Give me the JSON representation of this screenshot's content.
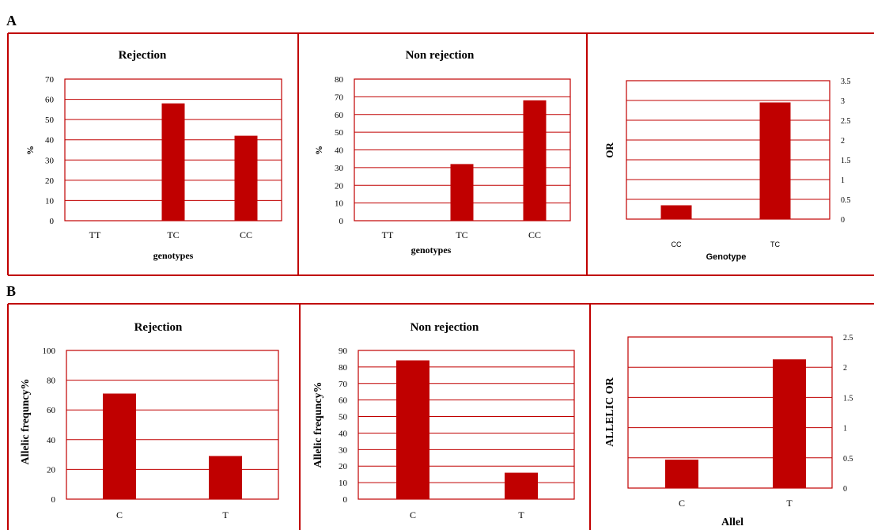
{
  "panels": [
    {
      "letter": "A"
    },
    {
      "letter": "B"
    }
  ],
  "colors": {
    "bar": "#c00000",
    "frame": "#c00000",
    "text": "#000000"
  },
  "chart_data": [
    {
      "type": "bar",
      "panel": "A",
      "title": "Rejection",
      "xlabel": "genotypes",
      "ylabel": "%",
      "categories": [
        "TT",
        "TC",
        "CC"
      ],
      "values": [
        0,
        58,
        42
      ],
      "ylim": [
        0,
        70
      ],
      "yticks": [
        "0",
        "10",
        "20",
        "30",
        "40",
        "50",
        "60",
        "70"
      ],
      "grid": true,
      "y_axis_side": "left"
    },
    {
      "type": "bar",
      "panel": "A",
      "title": "Non rejection",
      "xlabel": "genotypes",
      "ylabel": "%",
      "categories": [
        "TT",
        "TC",
        "CC"
      ],
      "values": [
        0,
        32,
        68
      ],
      "ylim": [
        0,
        80
      ],
      "yticks": [
        "0",
        "10",
        "20",
        "30",
        "40",
        "50",
        "60",
        "70",
        "80"
      ],
      "grid": true,
      "y_axis_side": "left"
    },
    {
      "type": "bar",
      "panel": "A",
      "title": "",
      "xlabel": "Genotype",
      "ylabel": "OR",
      "categories": [
        "CC",
        "TC"
      ],
      "values": [
        0.35,
        2.95
      ],
      "ylim": [
        0,
        3.5
      ],
      "yticks": [
        "0",
        "0.5",
        "1",
        "1.5",
        "2",
        "2.5",
        "3",
        "3.5"
      ],
      "grid": true,
      "y_axis_side": "right"
    },
    {
      "type": "bar",
      "panel": "B",
      "title": "Rejection",
      "xlabel": "",
      "ylabel": "Allelic frequncy%",
      "categories": [
        "C",
        "T"
      ],
      "values": [
        71,
        29
      ],
      "ylim": [
        0,
        100
      ],
      "yticks": [
        "0",
        "20",
        "40",
        "60",
        "80",
        "100"
      ],
      "grid": true,
      "y_axis_side": "left"
    },
    {
      "type": "bar",
      "panel": "B",
      "title": "Non rejection",
      "xlabel": "",
      "ylabel": "Allelic frequncy%",
      "categories": [
        "C",
        "T"
      ],
      "values": [
        84,
        16
      ],
      "ylim": [
        0,
        90
      ],
      "yticks": [
        "0",
        "10",
        "20",
        "30",
        "40",
        "50",
        "60",
        "70",
        "80",
        "90"
      ],
      "grid": true,
      "y_axis_side": "left"
    },
    {
      "type": "bar",
      "panel": "B",
      "title": "",
      "xlabel": "Allel",
      "ylabel": "ALLELIC OR",
      "categories": [
        "C",
        "T"
      ],
      "values": [
        0.47,
        2.13
      ],
      "ylim": [
        0,
        2.5
      ],
      "yticks": [
        "0",
        "0.5",
        "1",
        "1.5",
        "2",
        "2.5"
      ],
      "grid": true,
      "y_axis_side": "right"
    }
  ]
}
